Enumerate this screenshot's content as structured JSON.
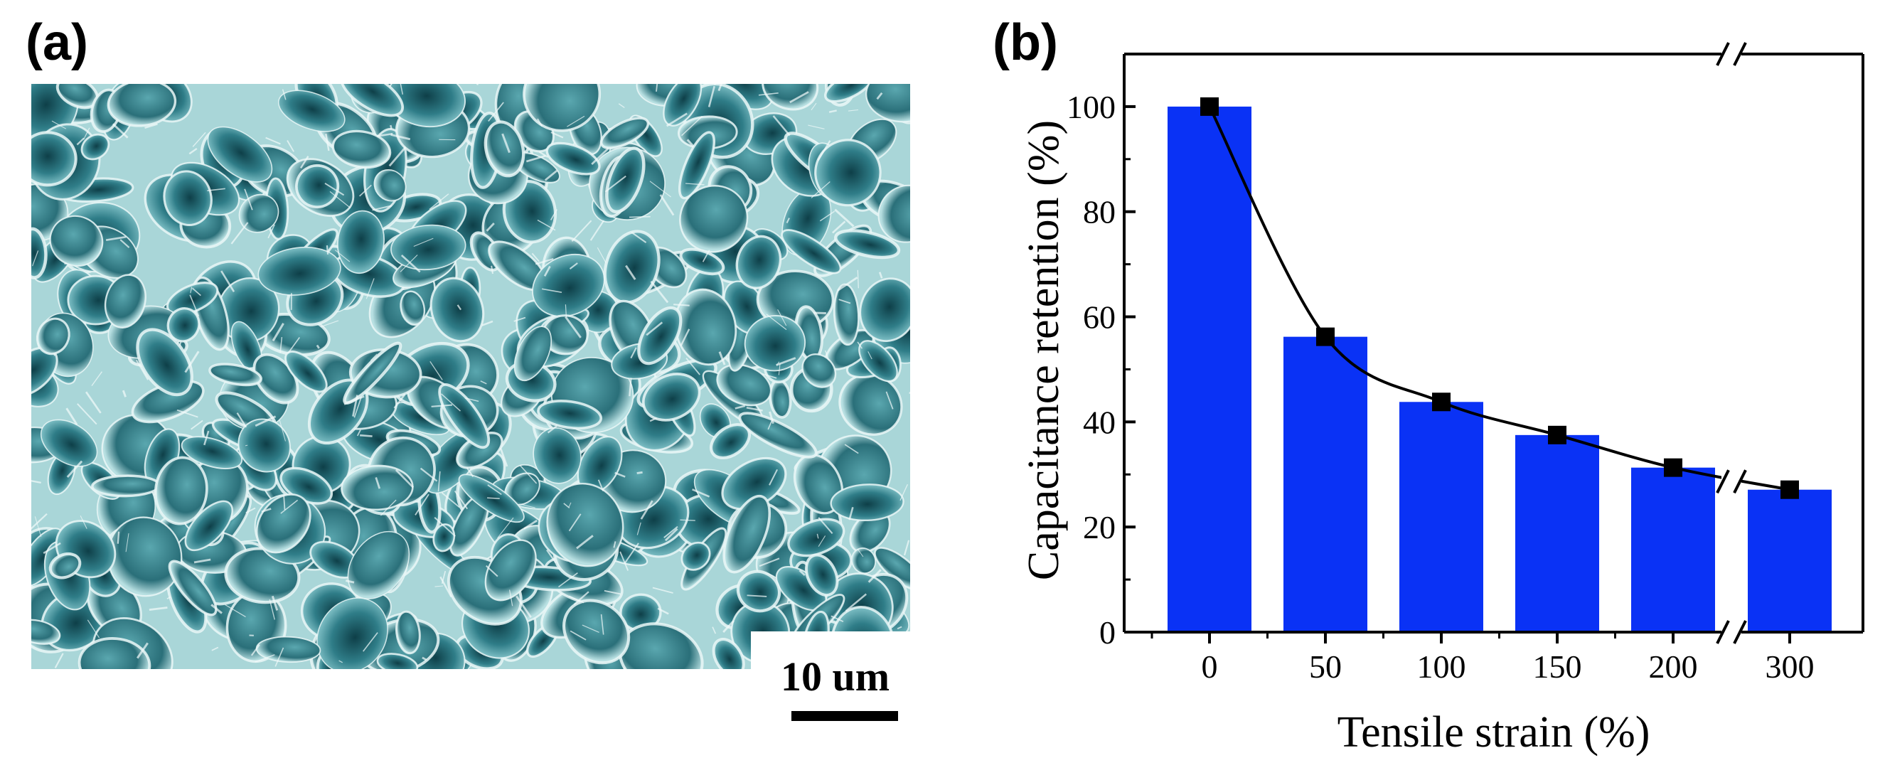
{
  "panels": {
    "a_label": "(a)",
    "b_label": "(b)"
  },
  "micrograph": {
    "scale_bar_label": "10 um",
    "tint_color": "#4a9aa3"
  },
  "chart_data": {
    "type": "bar",
    "title": "",
    "xlabel": "Tensile strain (%)",
    "ylabel": "Capacitance retention (%)",
    "categories": [
      "0",
      "50",
      "100",
      "150",
      "200",
      "300"
    ],
    "series": [
      {
        "values": [
          100,
          56.2,
          43.8,
          37.5,
          31.3,
          27.1
        ]
      }
    ],
    "line_overlay": {
      "values": [
        100,
        56.2,
        43.8,
        37.5,
        31.3,
        27.1
      ]
    },
    "ylim": [
      0,
      110
    ],
    "yticks": [
      0,
      20,
      40,
      60,
      80,
      100
    ],
    "axis_break": "between 200 and 300",
    "grid": false,
    "legend": "none",
    "bar_color": "#0a32f5",
    "line_color": "#000000"
  }
}
